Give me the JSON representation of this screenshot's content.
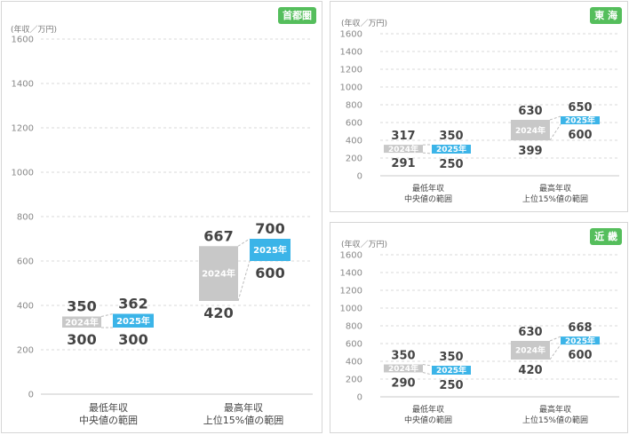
{
  "colors": {
    "badge": "#55be5c",
    "bar2024": "#c8c8c8",
    "bar2025": "#3bb4e8",
    "connector": "#bdbdbd",
    "grid": "#d8d8d8"
  },
  "chart_data": [
    {
      "type": "bar",
      "region": "首都圏",
      "unit_label": "(年収／万円)",
      "ylim": [
        0,
        1600
      ],
      "yticks": [
        0,
        200,
        400,
        600,
        800,
        1000,
        1200,
        1400,
        1600
      ],
      "categories": [
        "最低年収\n中央値の範囲",
        "最高年収\n上位15%値の範囲"
      ],
      "series": [
        {
          "name": "2024年",
          "ranges": [
            [
              300,
              350
            ],
            [
              420,
              667
            ]
          ]
        },
        {
          "name": "2025年",
          "ranges": [
            [
              300,
              362
            ],
            [
              600,
              700
            ]
          ]
        }
      ]
    },
    {
      "type": "bar",
      "region": "東 海",
      "unit_label": "(年収／万円)",
      "ylim": [
        0,
        1600
      ],
      "yticks": [
        0,
        200,
        400,
        600,
        800,
        1000,
        1200,
        1400,
        1600
      ],
      "categories": [
        "最低年収\n中央値の範囲",
        "最高年収\n上位15%値の範囲"
      ],
      "series": [
        {
          "name": "2024年",
          "ranges": [
            [
              291,
              317
            ],
            [
              399,
              630
            ]
          ]
        },
        {
          "name": "2025年",
          "ranges": [
            [
              250,
              350
            ],
            [
              600,
              650
            ]
          ]
        }
      ]
    },
    {
      "type": "bar",
      "region": "近 畿",
      "unit_label": "(年収／万円)",
      "ylim": [
        0,
        1600
      ],
      "yticks": [
        0,
        200,
        400,
        600,
        800,
        1000,
        1200,
        1400,
        1600
      ],
      "categories": [
        "最低年収\n中央値の範囲",
        "最高年収\n上位15%値の範囲"
      ],
      "series": [
        {
          "name": "2024年",
          "ranges": [
            [
              290,
              350
            ],
            [
              420,
              630
            ]
          ]
        },
        {
          "name": "2025年",
          "ranges": [
            [
              250,
              350
            ],
            [
              600,
              668
            ]
          ]
        }
      ]
    }
  ]
}
